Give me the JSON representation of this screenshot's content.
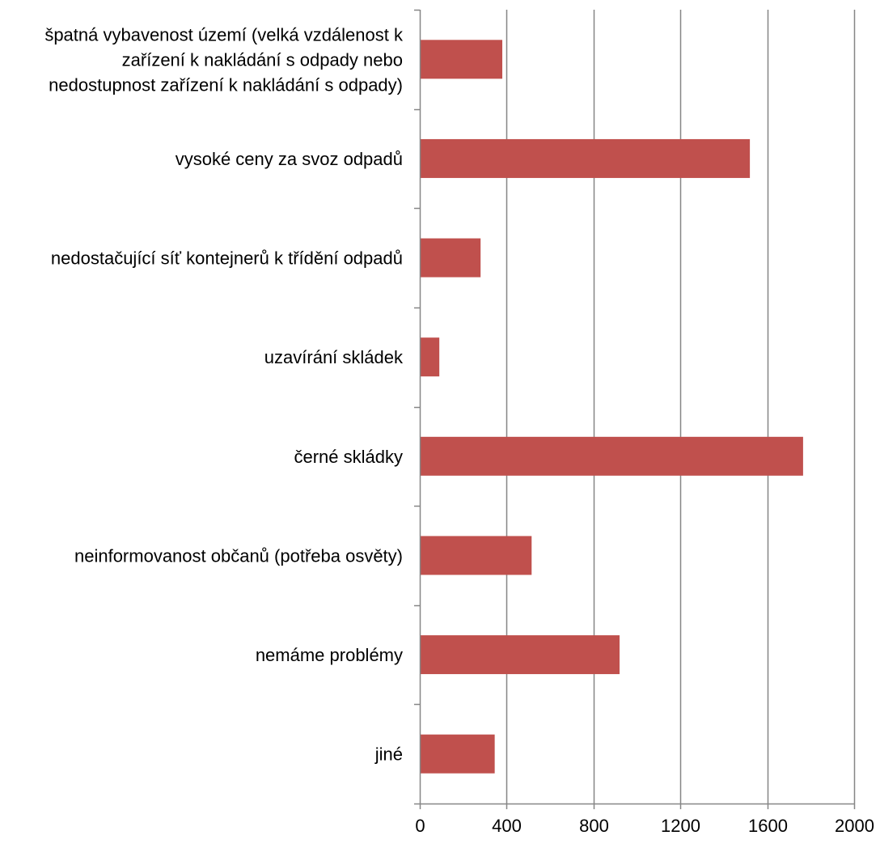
{
  "chart_data": {
    "type": "bar",
    "orientation": "horizontal",
    "categories": [
      [
        "špatná vybavenost území (velká vzdálenost k",
        "zařízení k nakládání s odpady nebo",
        "nedostupnost zařízení k nakládání s odpady)"
      ],
      [
        "vysoké ceny za svoz odpadů"
      ],
      [
        "nedostačující síť kontejnerů k třídění odpadů"
      ],
      [
        "uzavírání skládek"
      ],
      [
        "černé skládky"
      ],
      [
        "neinformovanost občanů (potřeba osvěty)"
      ],
      [
        "nemáme problémy"
      ],
      [
        "jiné"
      ]
    ],
    "values": [
      380,
      1520,
      280,
      90,
      1765,
      515,
      920,
      345
    ],
    "xlim": [
      0,
      2000
    ],
    "xticks": [
      "0",
      "400",
      "800",
      "1200",
      "1600",
      "2000"
    ],
    "grid": true,
    "legend": "none",
    "bar_color": "#C0504D",
    "grid_color": "#868686",
    "axis_color": "#868686"
  }
}
